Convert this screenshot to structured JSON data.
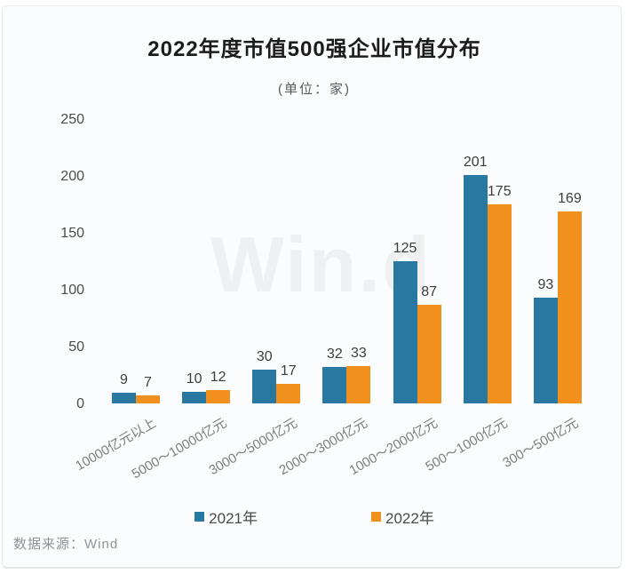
{
  "title": "2022年度市值500强企业市值分布",
  "subtitle": "(单位：家)",
  "watermark": "Win.d",
  "source": "数据来源：Wind",
  "colors": {
    "series_2021": "#2878A2",
    "series_2022": "#F2901E",
    "card_bg": "#FBFCFD"
  },
  "chart_data": {
    "type": "bar",
    "categories": [
      "10000亿元以上",
      "5000～10000亿元",
      "3000～5000亿元",
      "2000～3000亿元",
      "1000～2000亿元",
      "500～1000亿元",
      "300～500亿元"
    ],
    "series": [
      {
        "name": "2021年",
        "color": "#2878A2",
        "values": [
          9,
          10,
          30,
          32,
          125,
          201,
          93
        ]
      },
      {
        "name": "2022年",
        "color": "#F2901E",
        "values": [
          7,
          12,
          17,
          33,
          87,
          175,
          169
        ]
      }
    ],
    "title": "2022年度市值500强企业市值分布",
    "xlabel": "",
    "ylabel": "",
    "unit": "家",
    "ylim": [
      0,
      250
    ],
    "yticks": [
      0,
      50,
      100,
      150,
      200,
      250
    ],
    "grid": false,
    "legend_position": "bottom",
    "value_labels": true
  }
}
